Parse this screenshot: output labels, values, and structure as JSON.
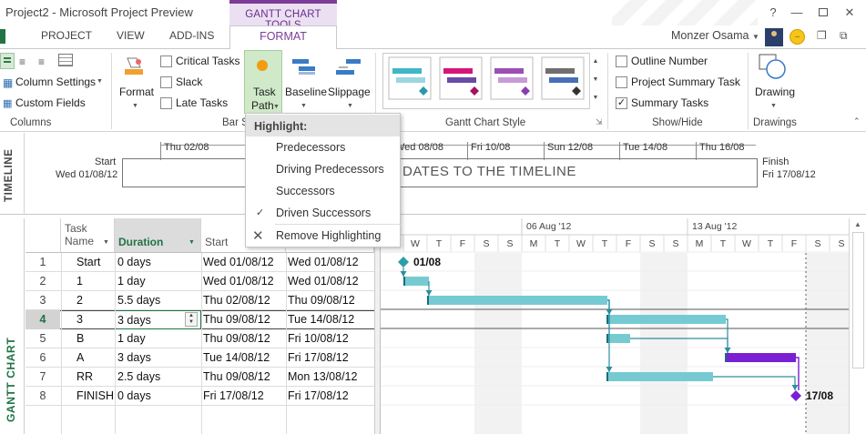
{
  "app": {
    "title": "Project2 - Microsoft Project Preview",
    "context_group": "GANTT CHART TOOLS",
    "user": "Monzer Osama"
  },
  "tabs": [
    "PROJECT",
    "VIEW",
    "ADD-INS",
    "FORMAT"
  ],
  "ribbon": {
    "columns": {
      "settings": "Column Settings",
      "custom": "Custom Fields",
      "group": "Columns"
    },
    "format": {
      "label": "Format"
    },
    "checks": {
      "critical": "Critical Tasks",
      "slack": "Slack",
      "late": "Late Tasks"
    },
    "bar_styles": {
      "task_path_1": "Task",
      "task_path_2": "Path",
      "baseline": "Baseline",
      "slippage": "Slippage",
      "group": "Bar S"
    },
    "gantt_style": {
      "group": "Gantt Chart Style"
    },
    "show_hide": {
      "outline": "Outline Number",
      "summary_task": "Project Summary Task",
      "summary_tasks": "Summary Tasks",
      "group": "Show/Hide"
    },
    "drawings": {
      "label": "Drawing",
      "group": "Drawings"
    }
  },
  "colors": {
    "accent": "#7d3c98",
    "green": "#217346",
    "bar": "#76cbd3",
    "critical": "#7a1fd1",
    "diamond": "#2e9ea8"
  },
  "timeline": {
    "label": "TIMELINE",
    "start_label": "Start",
    "start_date": "Wed 01/08/12",
    "finish_label": "Finish",
    "finish_date": "Fri 17/08/12",
    "placeholder": "H DATES TO THE TIMELINE",
    "ticks": [
      "Thu 02/08",
      "Wed 08/08",
      "Fri 10/08",
      "Sun 12/08",
      "Tue 14/08",
      "Thu 16/08"
    ]
  },
  "gantt_label": "GANTT CHART",
  "table": {
    "headers": {
      "name_1": "Task",
      "name_2": "Name",
      "duration": "Duration",
      "start": "Start"
    },
    "rows": [
      {
        "id": "1",
        "name": "Start",
        "duration": "0 days",
        "start": "Wed 01/08/12",
        "finish": "Wed 01/08/12"
      },
      {
        "id": "2",
        "name": "1",
        "duration": "1 day",
        "start": "Wed 01/08/12",
        "finish": "Wed 01/08/12"
      },
      {
        "id": "3",
        "name": "2",
        "duration": "5.5 days",
        "start": "Thu 02/08/12",
        "finish": "Thu 09/08/12"
      },
      {
        "id": "4",
        "name": "3",
        "duration": "3 days",
        "start": "Thu 09/08/12",
        "finish": "Tue 14/08/12"
      },
      {
        "id": "5",
        "name": "B",
        "duration": "1 day",
        "start": "Thu 09/08/12",
        "finish": "Fri 10/08/12"
      },
      {
        "id": "6",
        "name": "A",
        "duration": "3 days",
        "start": "Tue 14/08/12",
        "finish": "Fri 17/08/12"
      },
      {
        "id": "7",
        "name": "RR",
        "duration": "2.5 days",
        "start": "Thu 09/08/12",
        "finish": "Mon 13/08/12"
      },
      {
        "id": "8",
        "name": "FINISH",
        "duration": "0 days",
        "start": "Fri 17/08/12",
        "finish": "Fri 17/08/12"
      }
    ]
  },
  "gantt": {
    "weeks": [
      "06 Aug '12",
      "13 Aug '12"
    ],
    "days": [
      "W",
      "T",
      "F",
      "S",
      "S",
      "M",
      "T",
      "W",
      "T",
      "F",
      "S",
      "S",
      "M",
      "T",
      "W",
      "T",
      "F",
      "S",
      "S"
    ],
    "start_milestone": "01/08",
    "finish_milestone": "17/08"
  },
  "menu": {
    "header": "Highlight:",
    "items": [
      "Predecessors",
      "Driving Predecessors",
      "Successors",
      "Driven Successors",
      "Remove Highlighting"
    ]
  }
}
